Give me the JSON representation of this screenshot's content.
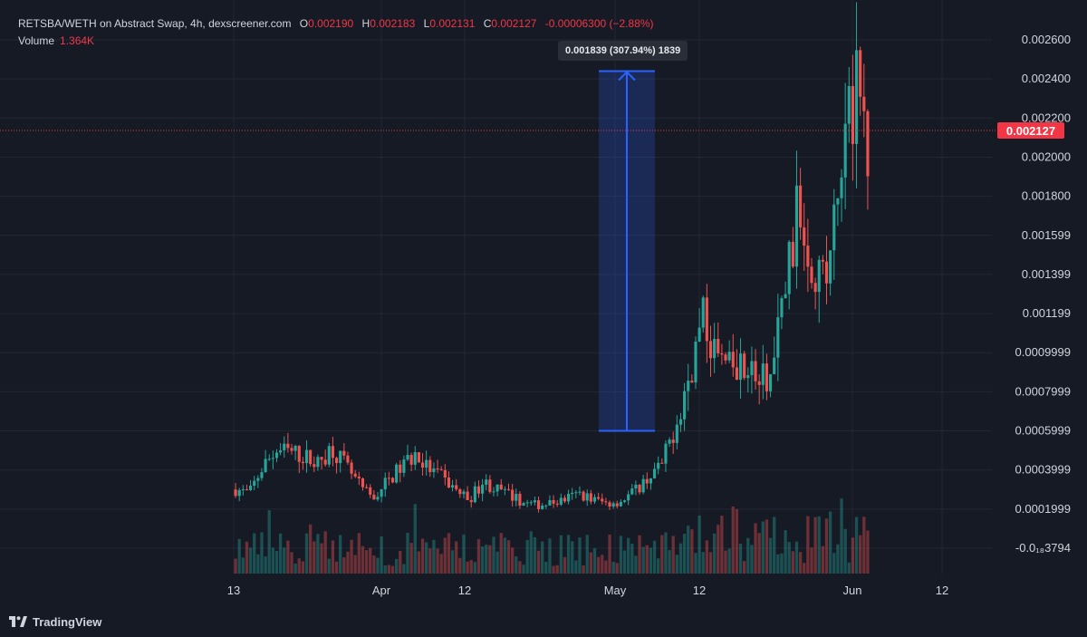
{
  "header": {
    "symbol": "RETSBA/WETH on Abstract Swap, 4h, dexscreener.com",
    "open_label": "O",
    "open": "0.002190",
    "high_label": "H",
    "high": "0.002183",
    "low_label": "L",
    "low": "0.002131",
    "close_label": "C",
    "close": "0.002127",
    "change": "-0.00006300 (−2.88%)",
    "volume_label": "Volume",
    "volume": "1.364K"
  },
  "price_axis": [
    "0.002600",
    "0.002400",
    "0.002200",
    "0.002000",
    "0.001800",
    "0.001599",
    "0.001399",
    "0.001199",
    "0.0009999",
    "0.0007999",
    "0.0005999",
    "0.0003999",
    "0.0001999",
    "-0.0₁₈3794"
  ],
  "time_axis": [
    "13",
    "Apr",
    "12",
    "May",
    "12",
    "Jun",
    "12"
  ],
  "current_price": "0.002127",
  "measure": {
    "label": "0.001839 (307.94%) 1839",
    "from": 0.0006,
    "to": 0.00244
  },
  "brand": "TradingView",
  "colors": {
    "background": "#161a25",
    "up": "#26a69a",
    "down": "#ef5350",
    "measure": "#2962ff",
    "price_line": "#f23645"
  },
  "chart_data": {
    "type": "candlestick",
    "title": "RETSBA/WETH on Abstract Swap, 4h, dexscreener.com",
    "interval": "4h",
    "ylim": [
      -8e-05,
      0.00267
    ],
    "x_ticks": [
      "13",
      "Apr",
      "12",
      "May",
      "12",
      "Jun",
      "12"
    ],
    "last": {
      "open": 0.00219,
      "high": 0.002183,
      "low": 0.002131,
      "close": 0.002127
    },
    "close_path": [
      [
        "Mar 12",
        0.0003
      ],
      [
        "Mar 13",
        0.00028
      ],
      [
        "Mar 15",
        0.00042
      ],
      [
        "Mar 17",
        0.0005
      ],
      [
        "Mar 19",
        0.00049
      ],
      [
        "Mar 21",
        0.00047
      ],
      [
        "Mar 22",
        0.00043
      ],
      [
        "Mar 24",
        0.00052
      ],
      [
        "Mar 26",
        0.00042
      ],
      [
        "Mar 28",
        0.00032
      ],
      [
        "Mar 30",
        0.00025
      ],
      [
        "Apr 1",
        0.00034
      ],
      [
        "Apr 3",
        0.00041
      ],
      [
        "Apr 4",
        0.00048
      ],
      [
        "Apr 6",
        0.00041
      ],
      [
        "Apr 8",
        0.00036
      ],
      [
        "Apr 10",
        0.0003
      ],
      [
        "Apr 12",
        0.00025
      ],
      [
        "Apr 14",
        0.00034
      ],
      [
        "Apr 16",
        0.0003
      ],
      [
        "Apr 18",
        0.00027
      ],
      [
        "Apr 20",
        0.00023
      ],
      [
        "Apr 22",
        0.00022
      ],
      [
        "Apr 25",
        0.00023
      ],
      [
        "Apr 28",
        0.00025
      ],
      [
        "May 1",
        0.00028
      ],
      [
        "May 3",
        0.00025
      ],
      [
        "May 5",
        0.00023
      ],
      [
        "May 7",
        0.00024
      ],
      [
        "May 9",
        0.00029
      ],
      [
        "May 11",
        0.00036
      ],
      [
        "May 13",
        0.00042
      ],
      [
        "May 15",
        0.00063
      ],
      [
        "May 17",
        0.00088
      ],
      [
        "May 19",
        0.00117
      ],
      [
        "May 21",
        0.00098
      ],
      [
        "May 23",
        0.0009
      ],
      [
        "May 24",
        0.00098
      ],
      [
        "May 26",
        0.00085
      ],
      [
        "May 28",
        0.00087
      ],
      [
        "May 29",
        0.00135
      ],
      [
        "May 30",
        0.00175
      ],
      [
        "May 31",
        0.00148
      ],
      [
        "Jun 1",
        0.00138
      ],
      [
        "Jun 2",
        0.00185
      ],
      [
        "Jun 3",
        0.00235
      ],
      [
        "Jun 3b",
        0.00213
      ]
    ]
  }
}
